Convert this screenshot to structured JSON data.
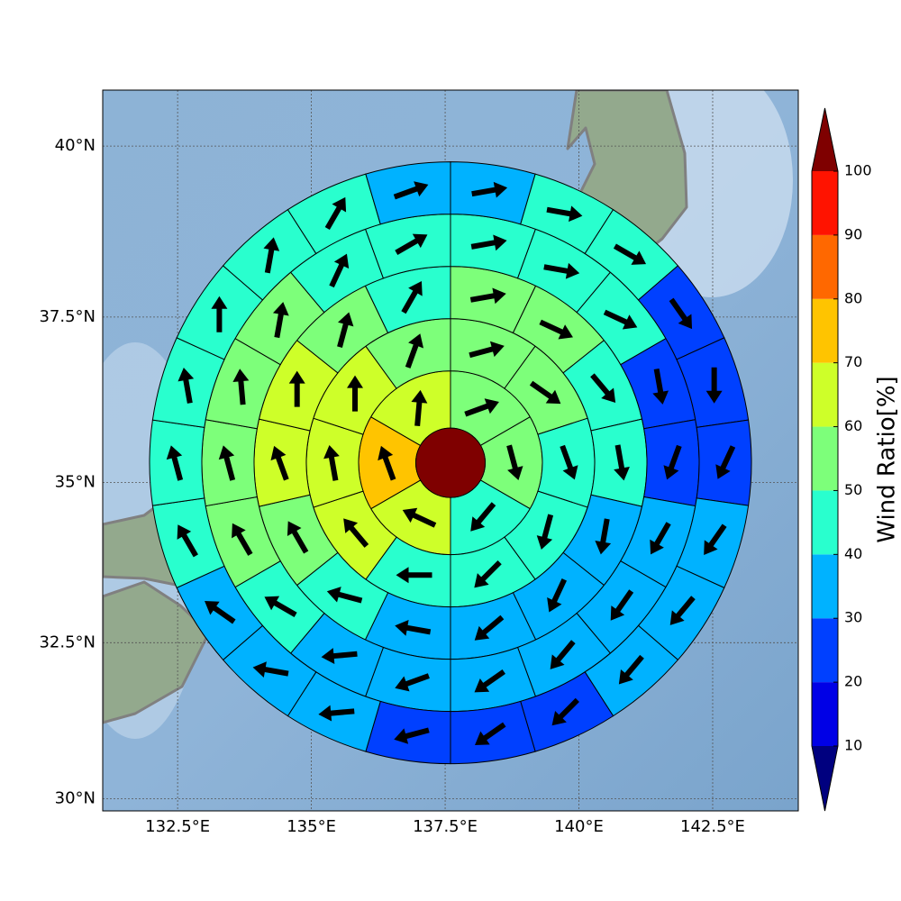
{
  "chart_data": {
    "type": "polar_grid_map",
    "projection": "mercator",
    "xlim": [
      131.1,
      144.1
    ],
    "ylim": [
      29.8,
      40.8
    ],
    "xticks": [
      {
        "value": 132.5,
        "label": "132.5°E"
      },
      {
        "value": 135,
        "label": "135°E"
      },
      {
        "value": 137.5,
        "label": "137.5°E"
      },
      {
        "value": 140,
        "label": "140°E"
      },
      {
        "value": 142.5,
        "label": "142.5°E"
      }
    ],
    "yticks": [
      {
        "value": 30,
        "label": "30°N"
      },
      {
        "value": 32.5,
        "label": "32.5°N"
      },
      {
        "value": 35,
        "label": "35°N"
      },
      {
        "value": 37.5,
        "label": "37.5°N"
      },
      {
        "value": 40,
        "label": "40°N"
      }
    ],
    "grid": true,
    "center": {
      "lon": 137.6,
      "lat": 35.3,
      "value": 100
    },
    "colorbar": {
      "label": "Wind Ratio[%]",
      "ticks": [
        10,
        20,
        30,
        40,
        50,
        60,
        70,
        80,
        90,
        100
      ],
      "colors": [
        "#0000e6",
        "#0040ff",
        "#00b2ff",
        "#29ffce",
        "#7dff7a",
        "#ceff29",
        "#ffc400",
        "#ff6800",
        "#ff1300"
      ],
      "under_color": "#00007f",
      "over_color": "#7f0000"
    },
    "rings": [
      {
        "values": [
          55,
          55,
          45,
          65,
          75,
          65
        ],
        "directions": [
          70,
          165,
          220,
          295,
          340,
          5
        ]
      },
      {
        "values": [
          55,
          55,
          45,
          45,
          45,
          45,
          65,
          65,
          65,
          55
        ],
        "directions": [
          75,
          125,
          160,
          195,
          225,
          270,
          320,
          350,
          0,
          20
        ]
      },
      {
        "values": [
          55,
          55,
          45,
          45,
          35,
          35,
          35,
          35,
          45,
          55,
          65,
          65,
          55,
          45
        ],
        "directions": [
          80,
          115,
          140,
          170,
          190,
          205,
          230,
          280,
          285,
          330,
          340,
          0,
          15,
          30
        ]
      },
      {
        "values": [
          45,
          45,
          45,
          25,
          25,
          35,
          35,
          35,
          35,
          35,
          35,
          45,
          55,
          55,
          55,
          55,
          45,
          45
        ],
        "directions": [
          80,
          100,
          115,
          170,
          200,
          210,
          215,
          220,
          235,
          250,
          265,
          300,
          330,
          345,
          355,
          10,
          25,
          60
        ]
      },
      {
        "values": [
          35,
          45,
          45,
          25,
          25,
          25,
          35,
          35,
          35,
          25,
          25,
          25,
          35,
          35,
          35,
          45,
          45,
          45,
          45,
          45,
          45,
          35
        ],
        "directions": [
          80,
          100,
          120,
          145,
          180,
          205,
          215,
          220,
          220,
          225,
          235,
          255,
          265,
          280,
          305,
          330,
          345,
          350,
          0,
          10,
          30,
          70
        ]
      }
    ]
  }
}
